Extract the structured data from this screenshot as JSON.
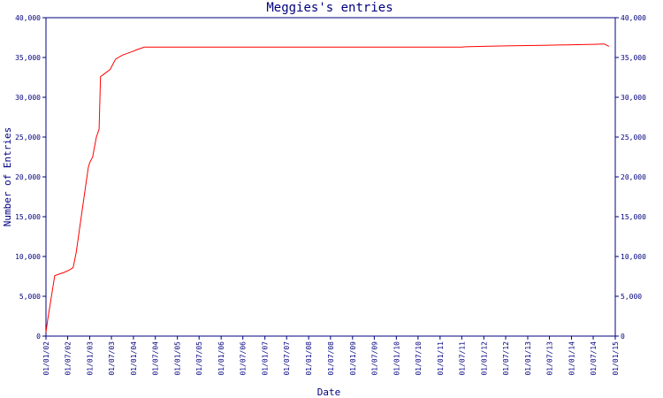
{
  "chart_data": {
    "type": "line",
    "title": "Meggies's entries",
    "xlabel": "Date",
    "ylabel": "Number of Entries",
    "ylim": [
      0,
      40000
    ],
    "xlim": [
      "01/01/02",
      "01/01/15"
    ],
    "y_ticks": [
      0,
      5000,
      10000,
      15000,
      20000,
      25000,
      30000,
      35000,
      40000
    ],
    "y_tick_labels": [
      "0",
      "5,000",
      "10,000",
      "15,000",
      "20,000",
      "25,000",
      "30,000",
      "35,000",
      "40,000"
    ],
    "x_tick_labels": [
      "01/01/02",
      "01/07/02",
      "01/01/03",
      "01/07/03",
      "01/01/04",
      "01/07/04",
      "01/01/05",
      "01/07/05",
      "01/01/06",
      "01/07/06",
      "01/01/07",
      "01/07/07",
      "01/01/08",
      "01/07/08",
      "01/01/09",
      "01/07/09",
      "01/01/10",
      "01/07/10",
      "01/01/11",
      "01/07/11",
      "01/01/12",
      "01/07/12",
      "01/01/13",
      "01/07/13",
      "01/01/14",
      "01/07/14",
      "01/01/15"
    ],
    "grid": false,
    "colors": {
      "series": "#ff0000",
      "axis": "#000080"
    },
    "series": [
      {
        "x": [
          "2002-01-01",
          "2002-01-15",
          "2002-03-15",
          "2002-06-01",
          "2002-07-15",
          "2002-08-15",
          "2002-09-10",
          "2002-11-01",
          "2002-12-20",
          "2003-01-01",
          "2003-01-25",
          "2003-02-25",
          "2003-03-20",
          "2003-04-01",
          "2003-04-20",
          "2003-06-20",
          "2003-08-05",
          "2003-10-01",
          "2004-01-01",
          "2004-02-01",
          "2004-04-01",
          "2004-07-01",
          "2005-01-01",
          "2006-01-01",
          "2007-01-01",
          "2008-01-01",
          "2009-01-01",
          "2010-01-01",
          "2011-01-01",
          "2011-07-01",
          "2011-08-01",
          "2012-01-01",
          "2012-07-01",
          "2013-01-01",
          "2013-07-01",
          "2014-01-01",
          "2014-07-01",
          "2014-10-01",
          "2014-11-10"
        ],
        "values": [
          500,
          2000,
          7600,
          8000,
          8300,
          8600,
          10500,
          16000,
          21200,
          21800,
          22500,
          25000,
          26000,
          32600,
          32800,
          33500,
          34800,
          35300,
          35800,
          36000,
          36300,
          36300,
          36300,
          36300,
          36300,
          36300,
          36300,
          36300,
          36300,
          36300,
          36350,
          36400,
          36450,
          36500,
          36550,
          36600,
          36650,
          36700,
          36400
        ]
      }
    ]
  }
}
